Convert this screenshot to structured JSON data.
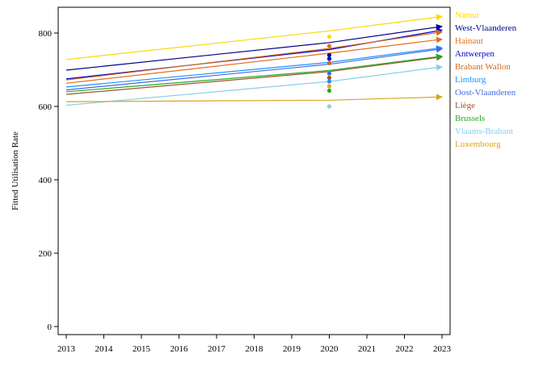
{
  "chart_data": {
    "type": "line",
    "title": "",
    "xlabel": "",
    "ylabel": "Fitted Utilisation Rate",
    "xlim": [
      2013,
      2023
    ],
    "ylim": [
      0,
      870
    ],
    "x_ticks": [
      "2013",
      "2014",
      "2015",
      "2016",
      "2017",
      "2018",
      "2019",
      "2020",
      "2021",
      "2022",
      "2023"
    ],
    "y_ticks": [
      "0",
      "200",
      "400",
      "600",
      "800"
    ],
    "grid": false,
    "legend_placement": "right",
    "observed_x": 2020,
    "x": [
      2013,
      2020,
      2023
    ],
    "series": [
      {
        "name": "Namur",
        "color": "#FFD700",
        "values": [
          728,
          806,
          845
        ],
        "observed": 790
      },
      {
        "name": "West-Vlaanderen",
        "color": "#00008B",
        "values": [
          699,
          774,
          818
        ],
        "observed": 740
      },
      {
        "name": "Hainaut",
        "color": "#E07020",
        "values": [
          663,
          745,
          783
        ],
        "observed": 765
      },
      {
        "name": "Antwerpen",
        "color": "#0000CD",
        "values": [
          675,
          755,
          808
        ],
        "observed": 730
      },
      {
        "name": "Brabant Wallon",
        "color": "#D2691E",
        "values": [
          672,
          758,
          803
        ],
        "observed": 718
      },
      {
        "name": "Limburg",
        "color": "#1E90FF",
        "values": [
          653,
          720,
          760
        ],
        "observed": 668
      },
      {
        "name": "Oost-Vlaanderen",
        "color": "#4169E1",
        "values": [
          645,
          715,
          757
        ],
        "observed": 690
      },
      {
        "name": "Liège",
        "color": "#A0522D",
        "values": [
          633,
          695,
          735
        ],
        "observed": 678
      },
      {
        "name": "Brussels",
        "color": "#22AA22",
        "values": [
          640,
          698,
          737
        ],
        "observed": 643
      },
      {
        "name": "Vlaams-Brabant",
        "color": "#87CEEB",
        "values": [
          603,
          668,
          708
        ],
        "observed": 600
      },
      {
        "name": "Luxembourg",
        "color": "#DAA520",
        "values": [
          613,
          617,
          626
        ],
        "observed": 655
      }
    ]
  }
}
